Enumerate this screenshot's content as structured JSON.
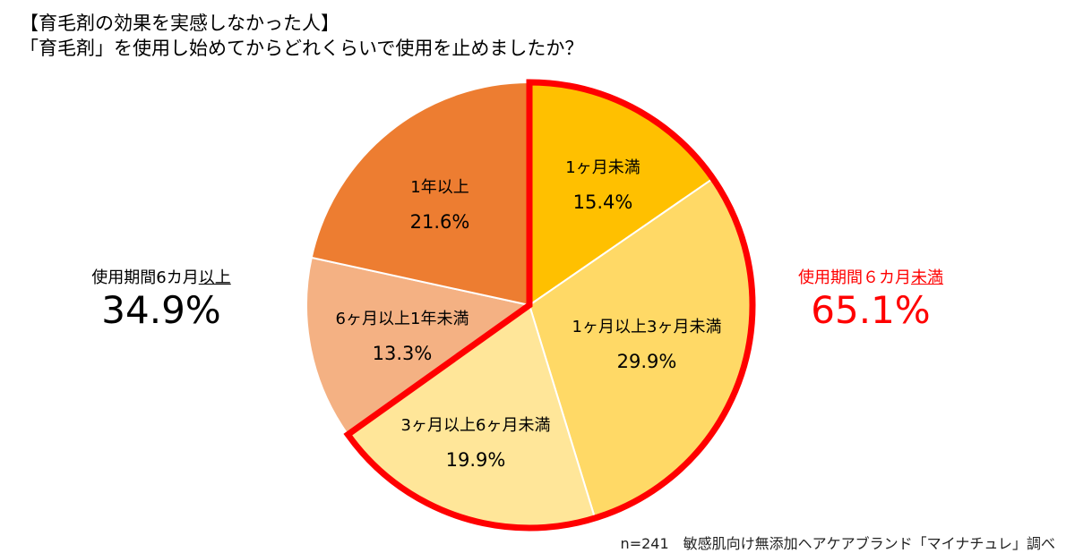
{
  "title_line1": "【育毛剤の効果を実感しなかった人】",
  "title_line2": "「育毛剤」を使用し始めてからどれくらいで使用を止めましたか？",
  "chart_data": {
    "type": "pie",
    "start": "12 o'clock, clockwise",
    "categories": [
      "1ヶ月未満",
      "1ヶ月以上3ヶ月未満",
      "3ヶ月以上6ヶ月未満",
      "6ヶ月以上1年未満",
      "1年以上"
    ],
    "values": [
      15.4,
      29.9,
      19.9,
      13.3,
      21.6
    ],
    "value_labels": [
      "15.4%",
      "29.9%",
      "19.9%",
      "13.3%",
      "21.6%"
    ],
    "colors": [
      "#FFC000",
      "#FFD966",
      "#FFE699",
      "#F4B183",
      "#ED7D31"
    ],
    "highlight": {
      "slices": [
        0,
        1,
        2
      ],
      "color": "#FF0000"
    }
  },
  "groups": {
    "left": {
      "caption_prefix": "使用期間6カ月",
      "caption_underlined": "以上",
      "value": "34.9%",
      "color": "#000000"
    },
    "right": {
      "caption_prefix": "使用期間６カ月",
      "caption_underlined": "未満",
      "value": "65.1%",
      "color": "#FF0000"
    }
  },
  "footnote": "n=241　敏感肌向け無添加ヘアケアブランド「マイナチュレ」調べ"
}
